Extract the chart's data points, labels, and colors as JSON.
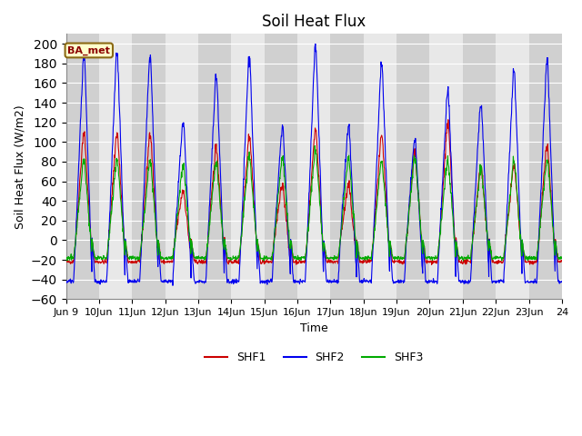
{
  "title": "Soil Heat Flux",
  "ylabel": "Soil Heat Flux (W/m2)",
  "xlabel": "Time",
  "ylim": [
    -60,
    210
  ],
  "yticks": [
    -60,
    -40,
    -20,
    0,
    20,
    40,
    60,
    80,
    100,
    120,
    140,
    160,
    180,
    200
  ],
  "num_days": 15,
  "label": "BA_met",
  "line_colors": {
    "SHF1": "#cc0000",
    "SHF2": "#0000ee",
    "SHF3": "#00aa00"
  },
  "bg_color": "#ffffff",
  "plot_bg": "#e8e8e8",
  "band_color_dark": "#d0d0d0",
  "band_color_light": "#e8e8e8",
  "grid_color": "#ffffff",
  "title_fontsize": 12,
  "label_fontsize": 9,
  "tick_fontsize": 8,
  "shf2_peaks": [
    185,
    190,
    185,
    120,
    165,
    185,
    113,
    195,
    115,
    178,
    102,
    150,
    138,
    170,
    180
  ],
  "shf1_peaks": [
    108,
    108,
    107,
    50,
    93,
    106,
    55,
    112,
    55,
    105,
    87,
    117,
    75,
    75,
    95
  ],
  "shf3_peaks": [
    80,
    82,
    80,
    75,
    78,
    84,
    83,
    90,
    82,
    80,
    84,
    80,
    72,
    80,
    82
  ],
  "shf1_night": -22,
  "shf2_night": -42,
  "shf3_night": -18
}
